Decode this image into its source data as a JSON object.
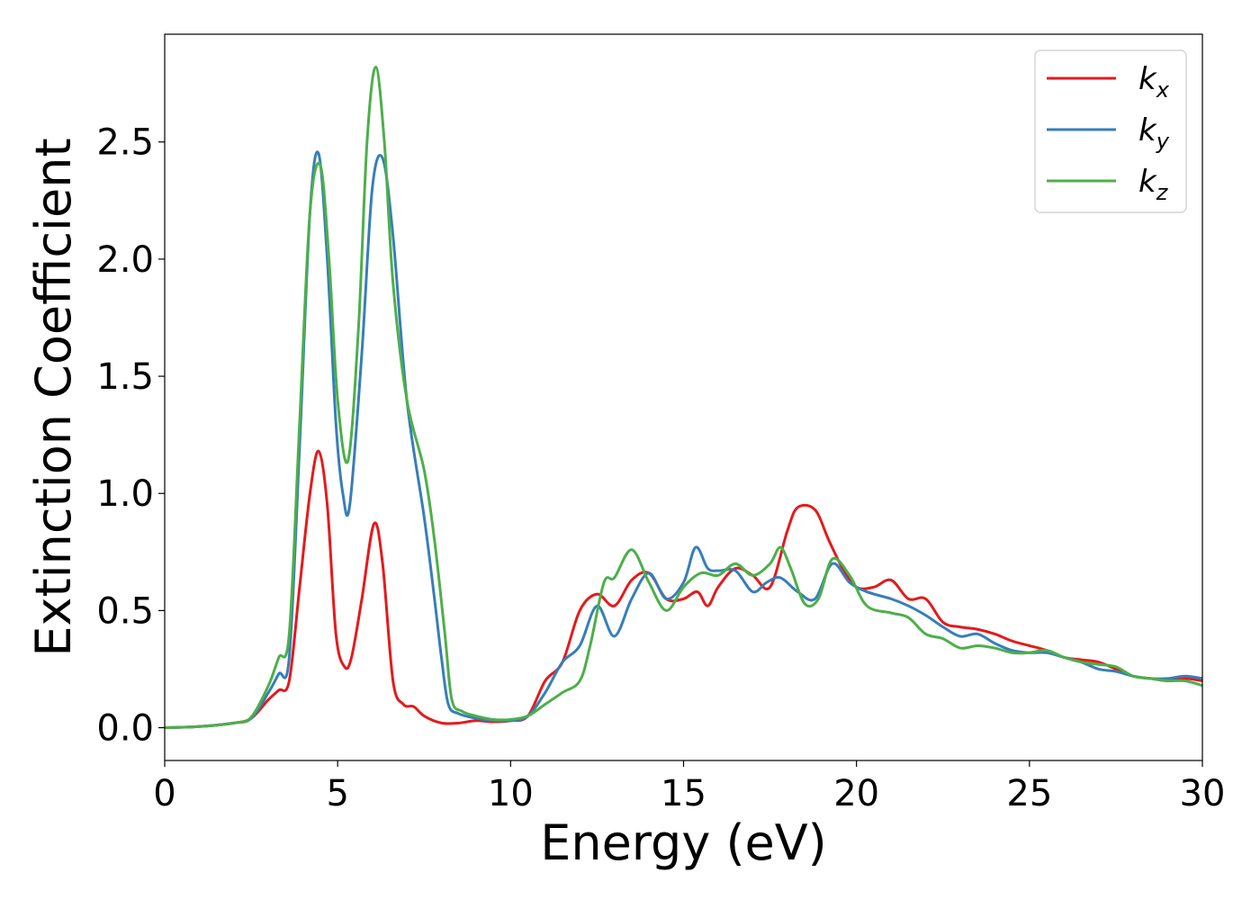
{
  "chart_data": {
    "type": "line",
    "title": "",
    "xlabel": "Energy (eV)",
    "ylabel": "Extinction Coefficient",
    "xlim": [
      0,
      30
    ],
    "ylim": [
      -0.14,
      2.96
    ],
    "xticks": [
      0,
      5,
      10,
      15,
      20,
      25,
      30
    ],
    "xtick_labels": [
      "0",
      "5",
      "10",
      "15",
      "20",
      "25",
      "30"
    ],
    "yticks": [
      0.0,
      0.5,
      1.0,
      1.5,
      2.0,
      2.5
    ],
    "ytick_labels": [
      "0.0",
      "0.5",
      "1.0",
      "1.5",
      "2.0",
      "2.5"
    ],
    "grid": false,
    "legend_position": "top-right",
    "series": [
      {
        "name": "k_x",
        "label_main": "k",
        "label_sub": "x",
        "color": "#e41a1c",
        "x": [
          0,
          1,
          2,
          2.5,
          3.0,
          3.3,
          3.6,
          3.9,
          4.2,
          4.45,
          4.7,
          4.95,
          5.2,
          5.4,
          5.7,
          6.05,
          6.3,
          6.6,
          6.9,
          7.2,
          7.5,
          8.0,
          8.5,
          9.0,
          9.5,
          10.0,
          10.5,
          11.0,
          11.5,
          12.0,
          12.5,
          13.0,
          13.5,
          14.0,
          14.5,
          15.0,
          15.4,
          15.7,
          16.0,
          16.5,
          17.0,
          17.5,
          18.0,
          18.3,
          18.8,
          19.2,
          19.6,
          20.0,
          20.5,
          21.0,
          21.5,
          22.0,
          22.5,
          23.0,
          23.5,
          24.0,
          24.5,
          25.0,
          25.5,
          26.0,
          26.5,
          27.0,
          27.5,
          28.0,
          28.5,
          29.0,
          29.5,
          30.0
        ],
        "values": [
          0.0,
          0.005,
          0.02,
          0.04,
          0.12,
          0.16,
          0.2,
          0.6,
          1.0,
          1.18,
          0.95,
          0.4,
          0.26,
          0.3,
          0.55,
          0.87,
          0.7,
          0.2,
          0.1,
          0.09,
          0.05,
          0.02,
          0.02,
          0.03,
          0.025,
          0.03,
          0.05,
          0.2,
          0.28,
          0.5,
          0.57,
          0.52,
          0.63,
          0.66,
          0.55,
          0.55,
          0.58,
          0.52,
          0.6,
          0.68,
          0.65,
          0.6,
          0.84,
          0.94,
          0.93,
          0.8,
          0.68,
          0.6,
          0.6,
          0.63,
          0.55,
          0.55,
          0.45,
          0.43,
          0.42,
          0.4,
          0.37,
          0.35,
          0.33,
          0.3,
          0.29,
          0.28,
          0.25,
          0.22,
          0.21,
          0.2,
          0.21,
          0.2
        ]
      },
      {
        "name": "k_y",
        "label_main": "k",
        "label_sub": "y",
        "color": "#377eb8",
        "x": [
          0,
          1,
          2,
          2.5,
          3.0,
          3.3,
          3.6,
          3.9,
          4.2,
          4.45,
          4.7,
          4.95,
          5.15,
          5.35,
          5.7,
          6.0,
          6.3,
          6.6,
          7.0,
          7.5,
          7.8,
          8.0,
          8.2,
          8.5,
          9.0,
          9.5,
          10.0,
          10.5,
          11.0,
          11.5,
          12.0,
          12.5,
          13.0,
          13.5,
          14.0,
          14.5,
          15.0,
          15.35,
          15.7,
          16.0,
          16.5,
          17.0,
          17.4,
          17.8,
          18.3,
          18.8,
          19.3,
          19.8,
          20.3,
          21.0,
          21.5,
          22.0,
          22.5,
          23.0,
          23.5,
          24.0,
          24.5,
          25.0,
          25.5,
          26.0,
          26.5,
          27.0,
          27.5,
          28.0,
          28.5,
          29.0,
          29.5,
          30.0
        ],
        "values": [
          0.0,
          0.005,
          0.02,
          0.04,
          0.15,
          0.23,
          0.3,
          1.2,
          2.2,
          2.45,
          2.0,
          1.3,
          1.0,
          0.95,
          1.6,
          2.3,
          2.43,
          2.1,
          1.4,
          0.9,
          0.55,
          0.3,
          0.1,
          0.06,
          0.04,
          0.03,
          0.03,
          0.05,
          0.15,
          0.28,
          0.35,
          0.52,
          0.39,
          0.55,
          0.66,
          0.55,
          0.62,
          0.77,
          0.68,
          0.67,
          0.67,
          0.58,
          0.62,
          0.64,
          0.58,
          0.55,
          0.7,
          0.62,
          0.58,
          0.55,
          0.52,
          0.48,
          0.43,
          0.39,
          0.4,
          0.36,
          0.33,
          0.32,
          0.32,
          0.3,
          0.28,
          0.25,
          0.24,
          0.22,
          0.21,
          0.21,
          0.22,
          0.21
        ]
      },
      {
        "name": "k_z",
        "label_main": "k",
        "label_sub": "z",
        "color": "#4daf4a",
        "x": [
          0,
          1,
          2,
          2.5,
          3.0,
          3.3,
          3.6,
          3.9,
          4.2,
          4.5,
          4.75,
          5.0,
          5.3,
          5.6,
          5.85,
          6.1,
          6.35,
          6.6,
          7.0,
          7.5,
          7.8,
          8.1,
          8.3,
          8.6,
          9.0,
          9.5,
          10.0,
          10.5,
          11.0,
          11.5,
          12.0,
          12.3,
          12.7,
          13.0,
          13.5,
          14.0,
          14.5,
          15.0,
          15.5,
          16.0,
          16.5,
          17.0,
          17.5,
          17.8,
          18.1,
          18.5,
          18.9,
          19.3,
          19.8,
          20.3,
          21.0,
          21.5,
          22.0,
          22.5,
          23.0,
          23.5,
          24.0,
          24.5,
          25.0,
          25.5,
          26.0,
          26.5,
          27.0,
          27.5,
          28.0,
          28.5,
          29.0,
          29.5,
          30.0
        ],
        "values": [
          0.0,
          0.005,
          0.02,
          0.045,
          0.18,
          0.3,
          0.4,
          1.3,
          2.2,
          2.4,
          2.0,
          1.4,
          1.14,
          1.7,
          2.5,
          2.82,
          2.5,
          1.9,
          1.4,
          1.1,
          0.8,
          0.4,
          0.12,
          0.07,
          0.05,
          0.035,
          0.035,
          0.05,
          0.1,
          0.15,
          0.2,
          0.35,
          0.62,
          0.64,
          0.76,
          0.62,
          0.5,
          0.6,
          0.66,
          0.65,
          0.7,
          0.65,
          0.7,
          0.77,
          0.68,
          0.53,
          0.55,
          0.72,
          0.65,
          0.52,
          0.49,
          0.47,
          0.4,
          0.38,
          0.34,
          0.35,
          0.34,
          0.32,
          0.32,
          0.33,
          0.3,
          0.28,
          0.27,
          0.26,
          0.22,
          0.21,
          0.2,
          0.2,
          0.18
        ]
      }
    ]
  }
}
